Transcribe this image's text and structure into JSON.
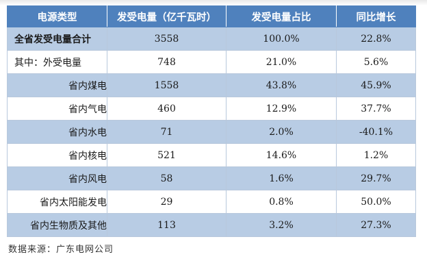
{
  "table": {
    "headers": [
      "电源类型",
      "发受电量（亿千瓦时）",
      "发受电量占比",
      "同比增长"
    ],
    "rows": [
      {
        "name": "全省发受电量合计",
        "value": "3558",
        "share": "100.0%",
        "growth": "22.8%"
      },
      {
        "name": "其中：外受电量",
        "value": "748",
        "share": "21.0%",
        "growth": "5.6%"
      },
      {
        "name": "省内煤电",
        "value": "1558",
        "share": "43.8%",
        "growth": "45.9%"
      },
      {
        "name": "省内气电",
        "value": "460",
        "share": "12.9%",
        "growth": "37.7%"
      },
      {
        "name": "省内水电",
        "value": "71",
        "share": "2.0%",
        "growth": "-40.1%"
      },
      {
        "name": "省内核电",
        "value": "521",
        "share": "14.6%",
        "growth": "1.2%"
      },
      {
        "name": "省内风电",
        "value": "58",
        "share": "1.6%",
        "growth": "29.7%"
      },
      {
        "name": "省内太阳能发电",
        "value": "29",
        "share": "0.8%",
        "growth": "50.0%"
      },
      {
        "name": "省内生物质及其他",
        "value": "113",
        "share": "3.2%",
        "growth": "27.3%"
      }
    ]
  },
  "source": "数据来源：广东电网公司",
  "colors": {
    "header": "#4f81bd",
    "alt_row": "#b8cce4",
    "border": "#b8c8dc"
  }
}
